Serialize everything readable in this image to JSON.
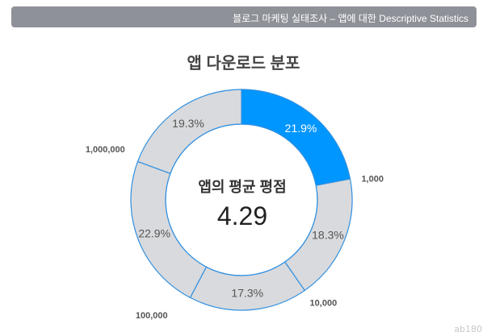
{
  "header": {
    "title": "블로그 마케팅 실태조사 – 앱에 대한 Descriptive Statistics"
  },
  "chart_data": {
    "type": "pie",
    "title": "앱 다운로드 분포",
    "center_label": "앱의 평균 평점",
    "center_value": "4.29",
    "slices": [
      {
        "label": "1,000",
        "value": 21.9,
        "value_label": "21.9%",
        "color": "#0096ff"
      },
      {
        "label": "10,000",
        "value": 18.3,
        "value_label": "18.3%",
        "color": "#d9dadd"
      },
      {
        "label": "100,000",
        "value": 17.3,
        "value_label": "17.3%",
        "color": "#d9dadd"
      },
      {
        "label": "1,000,000",
        "value": 22.9,
        "value_label": "22.9%",
        "color": "#d9dadd"
      },
      {
        "label": "",
        "value": 19.3,
        "value_label": "19.3%",
        "color": "#d9dadd"
      }
    ]
  },
  "watermark": "ab180",
  "colors": {
    "header_bg": "#8e9198",
    "accent": "#0096ff",
    "stroke": "#2f8fe0",
    "neutral": "#d9dadd"
  }
}
